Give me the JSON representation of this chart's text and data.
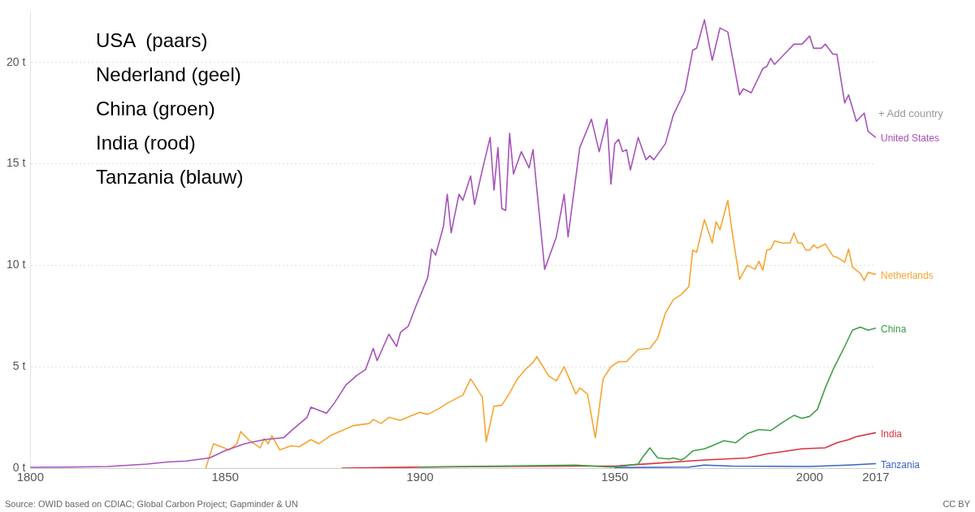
{
  "chart_data": {
    "type": "line",
    "xlim": [
      1800,
      2017
    ],
    "xticks": [
      1800,
      1850,
      1900,
      1950,
      2000,
      2017
    ],
    "ylim": [
      0,
      22.5
    ],
    "yticks": [
      {
        "value": 0,
        "label": "0 t"
      },
      {
        "value": 5,
        "label": "5 t"
      },
      {
        "value": 10,
        "label": "10 t"
      },
      {
        "value": 15,
        "label": "15 t"
      },
      {
        "value": 20,
        "label": "20 t"
      }
    ],
    "grid": "y",
    "legend": false,
    "marker": "none",
    "line_style": "solid",
    "series": [
      {
        "name": "United States",
        "color": "#a652ba",
        "x": [
          1800,
          1810,
          1820,
          1830,
          1835,
          1840,
          1844,
          1846,
          1850,
          1855,
          1860,
          1865,
          1867,
          1871,
          1872,
          1876,
          1878,
          1881,
          1884,
          1886,
          1888,
          1889,
          1892,
          1894,
          1895,
          1897,
          1899,
          1902,
          1903,
          1904,
          1906,
          1907,
          1908,
          1910,
          1911,
          1913,
          1914,
          1916,
          1918,
          1919,
          1920,
          1921,
          1922,
          1923,
          1924,
          1926,
          1928,
          1929,
          1932,
          1935,
          1937,
          1938,
          1941,
          1944,
          1946,
          1948,
          1949,
          1950,
          1951,
          1952,
          1953,
          1954,
          1956,
          1958,
          1959,
          1960,
          1963,
          1965,
          1968,
          1970,
          1971,
          1973,
          1975,
          1977,
          1979,
          1982,
          1983,
          1985,
          1988,
          1989,
          1990,
          1991,
          1994,
          1996,
          1998,
          2000,
          2001,
          2003,
          2004,
          2006,
          2007,
          2009,
          2010,
          2012,
          2014,
          2015,
          2017
        ],
        "values": [
          0.04,
          0.05,
          0.08,
          0.2,
          0.3,
          0.35,
          0.45,
          0.5,
          0.86,
          1.2,
          1.4,
          1.5,
          1.85,
          2.5,
          3.0,
          2.7,
          3.2,
          4.1,
          4.6,
          4.85,
          5.9,
          5.3,
          6.6,
          6.0,
          6.7,
          7.0,
          8.0,
          9.4,
          10.8,
          10.5,
          11.9,
          13.5,
          11.6,
          13.5,
          13.2,
          14.4,
          13.0,
          14.7,
          16.3,
          13.7,
          15.8,
          12.8,
          12.7,
          16.5,
          14.5,
          15.6,
          14.8,
          15.7,
          9.8,
          11.4,
          13.5,
          11.4,
          15.8,
          17.2,
          15.6,
          17.2,
          14.0,
          16.0,
          16.2,
          15.6,
          15.7,
          14.7,
          16.3,
          15.2,
          15.4,
          15.2,
          16.0,
          17.4,
          18.6,
          20.6,
          20.7,
          22.1,
          20.1,
          21.7,
          21.5,
          18.4,
          18.7,
          18.5,
          19.7,
          19.8,
          20.2,
          19.9,
          20.5,
          20.9,
          20.9,
          21.3,
          20.7,
          20.7,
          20.9,
          20.4,
          20.4,
          18.0,
          18.4,
          17.1,
          17.5,
          16.6,
          16.3
        ]
      },
      {
        "name": "Netherlands",
        "color": "#f6a532",
        "x": [
          1845,
          1847,
          1851,
          1853,
          1854,
          1856,
          1859,
          1860,
          1861,
          1862,
          1864,
          1867,
          1869,
          1872,
          1874,
          1877,
          1880,
          1883,
          1887,
          1888,
          1890,
          1892,
          1895,
          1898,
          1900,
          1902,
          1905,
          1907,
          1911,
          1913,
          1916,
          1917,
          1919,
          1921,
          1923,
          1925,
          1927,
          1929,
          1930,
          1933,
          1935,
          1937,
          1938,
          1940,
          1941,
          1943,
          1945,
          1947,
          1949,
          1951,
          1953,
          1956,
          1959,
          1961,
          1963,
          1965,
          1967,
          1969,
          1970,
          1971,
          1973,
          1975,
          1976,
          1977,
          1979,
          1980,
          1982,
          1984,
          1986,
          1987,
          1988,
          1989,
          1990,
          1991,
          1993,
          1995,
          1996,
          1997,
          1998,
          1999,
          2000,
          2001,
          2002,
          2004,
          2006,
          2007,
          2009,
          2010,
          2011,
          2013,
          2014,
          2015,
          2017
        ],
        "values": [
          0,
          1.2,
          0.9,
          1.2,
          1.8,
          1.4,
          1.0,
          1.45,
          1.2,
          1.6,
          0.9,
          1.1,
          1.05,
          1.4,
          1.2,
          1.6,
          1.85,
          2.1,
          2.2,
          2.4,
          2.2,
          2.5,
          2.35,
          2.6,
          2.75,
          2.65,
          2.95,
          3.2,
          3.6,
          4.4,
          3.5,
          1.3,
          3.05,
          3.1,
          3.7,
          4.4,
          4.85,
          5.2,
          5.5,
          4.55,
          4.3,
          5.0,
          4.55,
          3.65,
          3.95,
          3.65,
          1.5,
          4.4,
          5.0,
          5.25,
          5.25,
          5.85,
          5.9,
          6.4,
          7.65,
          8.3,
          8.55,
          8.95,
          10.75,
          10.65,
          12.25,
          11.1,
          12.15,
          11.75,
          13.2,
          11.8,
          9.3,
          10.0,
          9.8,
          10.2,
          9.75,
          10.75,
          10.8,
          11.2,
          11.1,
          11.1,
          11.6,
          11.1,
          11.1,
          10.75,
          10.75,
          11.0,
          10.85,
          11.05,
          10.45,
          10.4,
          10.15,
          10.8,
          9.9,
          9.6,
          9.25,
          9.65,
          9.55
        ]
      },
      {
        "name": "China",
        "color": "#3f9f46",
        "x": [
          1900,
          1920,
          1940,
          1949,
          1952,
          1956,
          1957,
          1959,
          1961,
          1964,
          1965,
          1967,
          1968,
          1970,
          1973,
          1975,
          1978,
          1981,
          1984,
          1987,
          1990,
          1993,
          1996,
          1998,
          2000,
          2002,
          2004,
          2006,
          2009,
          2011,
          2013,
          2015,
          2017
        ],
        "values": [
          0.05,
          0.1,
          0.15,
          0.05,
          0.1,
          0.2,
          0.5,
          1.0,
          0.5,
          0.45,
          0.5,
          0.4,
          0.5,
          0.85,
          0.95,
          1.1,
          1.35,
          1.25,
          1.7,
          1.9,
          1.85,
          2.25,
          2.6,
          2.45,
          2.55,
          2.9,
          3.95,
          4.85,
          6.0,
          6.8,
          6.95,
          6.8,
          6.9
        ]
      },
      {
        "name": "India",
        "color": "#d9333d",
        "x": [
          1880,
          1900,
          1920,
          1940,
          1950,
          1973,
          1984,
          1989,
          1998,
          2004,
          2007,
          2010,
          2012,
          2017
        ],
        "values": [
          0,
          0.05,
          0.08,
          0.1,
          0.1,
          0.4,
          0.5,
          0.7,
          0.95,
          1.0,
          1.25,
          1.4,
          1.55,
          1.75
        ]
      },
      {
        "name": "Tanzania",
        "color": "#3a63c0",
        "x": [
          1950,
          1969,
          1973,
          1980,
          2000,
          2010,
          2017
        ],
        "values": [
          0.03,
          0.05,
          0.15,
          0.1,
          0.08,
          0.15,
          0.22
        ]
      }
    ],
    "annotations": [
      "USA  (paars)",
      "Nederland (geel)",
      "China (groen)",
      "India (rood)",
      "Tanzania (blauw)",
      "+ Add country",
      "Source: OWID based on CDIAC; Global Carbon Project; Gapminder & UN",
      "CC BY"
    ]
  }
}
